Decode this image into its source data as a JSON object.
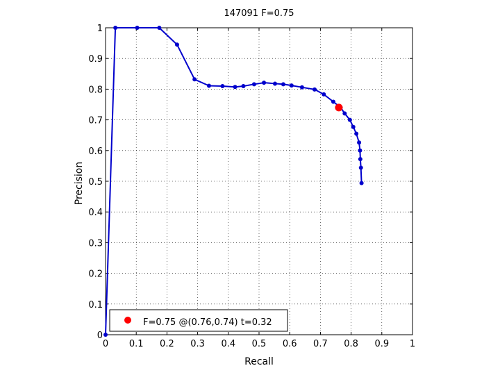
{
  "chart_data": {
    "type": "line",
    "title": "147091 F=0.75",
    "xlabel": "Recall",
    "ylabel": "Precision",
    "xlim": [
      0,
      1
    ],
    "ylim": [
      0,
      1
    ],
    "xticks": [
      "0",
      "0.1",
      "0.2",
      "0.3",
      "0.4",
      "0.5",
      "0.6",
      "0.7",
      "0.8",
      "0.9",
      "1"
    ],
    "yticks": [
      "0",
      "0.1",
      "0.2",
      "0.3",
      "0.4",
      "0.5",
      "0.6",
      "0.7",
      "0.8",
      "0.9",
      "1"
    ],
    "grid": true,
    "series": [
      {
        "color": "#0000cc",
        "points": [
          [
            0.0,
            0.0
          ],
          [
            0.032,
            1.0
          ],
          [
            0.103,
            1.0
          ],
          [
            0.175,
            1.0
          ],
          [
            0.233,
            0.945
          ],
          [
            0.29,
            0.832
          ],
          [
            0.337,
            0.811
          ],
          [
            0.381,
            0.81
          ],
          [
            0.422,
            0.807
          ],
          [
            0.449,
            0.81
          ],
          [
            0.484,
            0.816
          ],
          [
            0.516,
            0.821
          ],
          [
            0.552,
            0.818
          ],
          [
            0.579,
            0.816
          ],
          [
            0.606,
            0.812
          ],
          [
            0.64,
            0.806
          ],
          [
            0.681,
            0.799
          ],
          [
            0.711,
            0.783
          ],
          [
            0.742,
            0.759
          ],
          [
            0.766,
            0.74
          ],
          [
            0.779,
            0.721
          ],
          [
            0.796,
            0.7
          ],
          [
            0.807,
            0.677
          ],
          [
            0.817,
            0.655
          ],
          [
            0.826,
            0.626
          ],
          [
            0.829,
            0.6
          ],
          [
            0.83,
            0.572
          ],
          [
            0.832,
            0.544
          ],
          [
            0.834,
            0.494
          ]
        ]
      }
    ],
    "highlight": {
      "color": "#ff0000",
      "point": [
        0.76,
        0.74
      ]
    },
    "legend": {
      "placement": "bottom-left",
      "label": "F=0.75 @(0.76,0.74) t=0.32",
      "color": "#ff0000"
    }
  }
}
